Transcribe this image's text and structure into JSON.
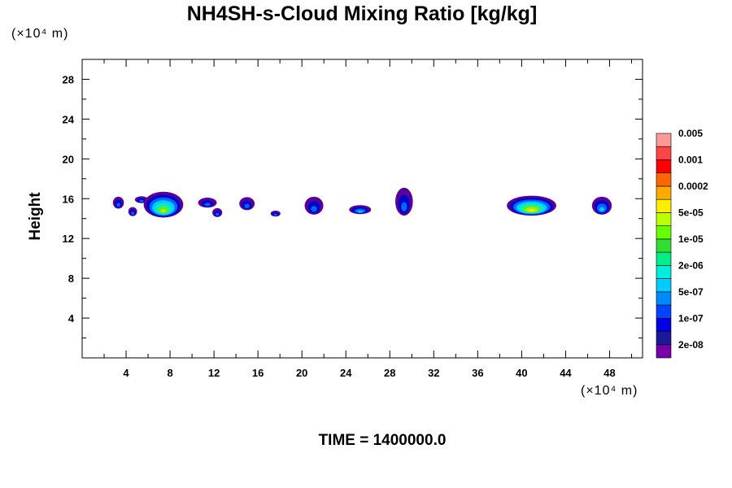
{
  "chart_data": {
    "type": "contour",
    "title": "NH4SH-s-Cloud Mixing Ratio [kg/kg]",
    "ylabel": "Height",
    "xlabel": "",
    "x_unit_label": "(×10⁴ m)",
    "y_unit_label": "(×10⁴ m)",
    "xlim": [
      0,
      51
    ],
    "ylim": [
      0,
      30
    ],
    "x_ticks": [
      4,
      8,
      12,
      16,
      20,
      24,
      28,
      32,
      36,
      40,
      44,
      48
    ],
    "y_ticks": [
      4,
      8,
      12,
      16,
      20,
      24,
      28
    ],
    "x_minor_step": 2,
    "y_minor_step": 2,
    "grid": false,
    "legend_position": "right",
    "colorbar": {
      "colors": [
        "#7700aa",
        "#1a1a99",
        "#0000e6",
        "#0044ff",
        "#0088ff",
        "#00ccff",
        "#00eedd",
        "#00ee88",
        "#33dd33",
        "#66ff00",
        "#bbff00",
        "#ffee00",
        "#ffaa00",
        "#ff6600",
        "#ff0000",
        "#ff4444",
        "#ff9999"
      ],
      "labels": [
        "2e-08",
        "1e-07",
        "5e-07",
        "2e-06",
        "1e-05",
        "5e-05",
        "0.0002",
        "0.001",
        "0.005"
      ]
    },
    "clouds": [
      {
        "x": 3.3,
        "y": 15.6,
        "w": 1.0,
        "h": 1.2
      },
      {
        "x": 4.6,
        "y": 14.7,
        "w": 0.8,
        "h": 0.9
      },
      {
        "x": 5.4,
        "y": 15.9,
        "w": 1.2,
        "h": 0.7
      },
      {
        "x": 7.4,
        "y": 15.4,
        "w": 3.6,
        "h": 2.6
      },
      {
        "x": 11.4,
        "y": 15.6,
        "w": 1.7,
        "h": 1.0
      },
      {
        "x": 12.3,
        "y": 14.6,
        "w": 0.9,
        "h": 0.9
      },
      {
        "x": 15.0,
        "y": 15.5,
        "w": 1.4,
        "h": 1.3
      },
      {
        "x": 17.6,
        "y": 14.5,
        "w": 0.9,
        "h": 0.6
      },
      {
        "x": 21.1,
        "y": 15.3,
        "w": 1.7,
        "h": 1.8
      },
      {
        "x": 25.3,
        "y": 14.9,
        "w": 2.0,
        "h": 0.9
      },
      {
        "x": 29.3,
        "y": 15.7,
        "w": 1.6,
        "h": 2.8
      },
      {
        "x": 40.9,
        "y": 15.3,
        "w": 4.5,
        "h": 2.0
      },
      {
        "x": 47.3,
        "y": 15.3,
        "w": 1.8,
        "h": 1.8
      }
    ]
  },
  "time_label": "TIME = 1400000.0"
}
